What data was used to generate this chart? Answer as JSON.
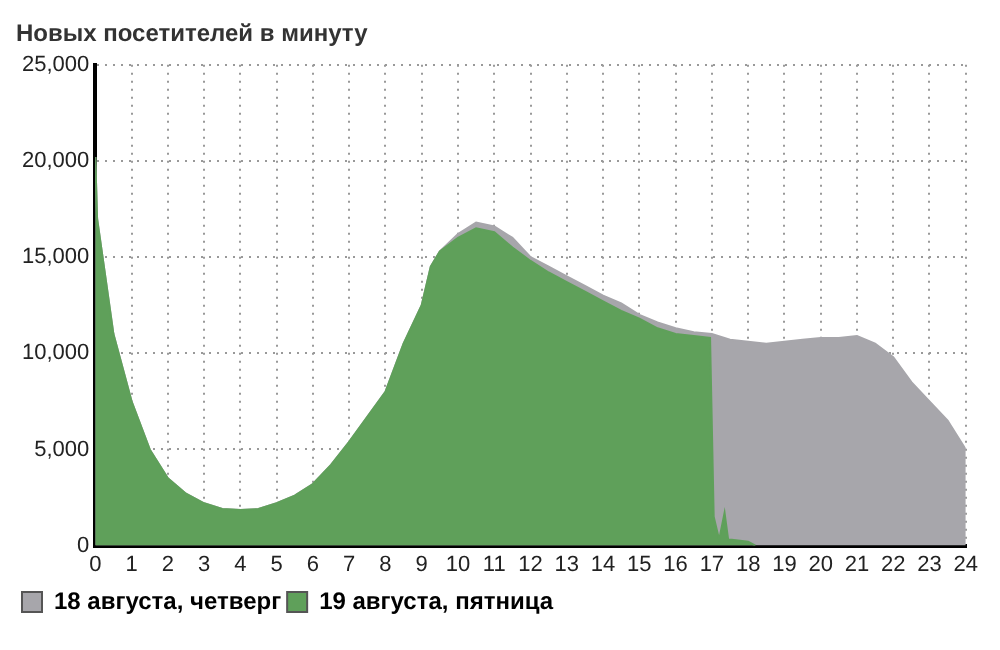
{
  "chart_data": {
    "type": "area",
    "title": "Новых посетителей в минуту",
    "xlim": [
      0,
      24
    ],
    "xticks": [
      0,
      1,
      2,
      3,
      4,
      5,
      6,
      7,
      8,
      9,
      10,
      11,
      12,
      13,
      14,
      15,
      16,
      17,
      18,
      19,
      20,
      21,
      22,
      23,
      24
    ],
    "ylim": [
      0,
      25000
    ],
    "yticks": [
      0,
      {
        "value": 5000,
        "label": "5,000"
      },
      {
        "value": 10000,
        "label": "10,000"
      },
      {
        "value": 15000,
        "label": "15,000"
      },
      {
        "value": 20000,
        "label": "20,000"
      },
      {
        "value": 25000,
        "label": "25,000"
      }
    ],
    "grid": true,
    "legend": "bottom left",
    "series": [
      {
        "name": "18 августа, четверг",
        "color": "#a7a6ab",
        "x": [
          0,
          0.05,
          0.2,
          0.5,
          1,
          1.5,
          2,
          2.5,
          3,
          3.5,
          4,
          4.5,
          5,
          5.5,
          6,
          6.5,
          7,
          7.5,
          8,
          8.5,
          9,
          9.25,
          9.5,
          10,
          10.5,
          11,
          11.5,
          12,
          12.5,
          13,
          13.5,
          14,
          14.5,
          15,
          15.5,
          16,
          16.5,
          17,
          17.5,
          18,
          18.5,
          19,
          19.5,
          20,
          20.5,
          21,
          21.5,
          22,
          22.5,
          23,
          23.5,
          24
        ],
        "values": [
          20200,
          17000,
          15000,
          11000,
          7500,
          5000,
          3500,
          2700,
          2200,
          1900,
          1850,
          1900,
          2200,
          2600,
          3200,
          4200,
          5400,
          6700,
          8000,
          10500,
          12500,
          14500,
          15300,
          16200,
          16800,
          16600,
          16000,
          15000,
          14500,
          14000,
          13500,
          13000,
          12600,
          12000,
          11600,
          11300,
          11100,
          11000,
          10700,
          10600,
          10500,
          10600,
          10700,
          10800,
          10800,
          10900,
          10500,
          9800,
          8500,
          7500,
          6500,
          5000
        ]
      },
      {
        "name": "19 августа, пятница",
        "color": "#5fa05a",
        "x": [
          0,
          0.05,
          0.2,
          0.5,
          1,
          1.5,
          2,
          2.5,
          3,
          3.5,
          4,
          4.5,
          5,
          5.5,
          6,
          6.5,
          7,
          7.5,
          8,
          8.5,
          9,
          9.25,
          9.5,
          10,
          10.5,
          11,
          11.5,
          12,
          12.5,
          13,
          13.5,
          14,
          14.5,
          15,
          15.5,
          16,
          16.5,
          16.95,
          17.05,
          17.2,
          17.35,
          17.45,
          17.55,
          18,
          18.2
        ],
        "values": [
          20200,
          17000,
          15000,
          11000,
          7500,
          5000,
          3500,
          2700,
          2200,
          1900,
          1850,
          1900,
          2200,
          2600,
          3200,
          4200,
          5400,
          6700,
          8000,
          10500,
          12500,
          14500,
          15300,
          16000,
          16500,
          16300,
          15500,
          14800,
          14200,
          13700,
          13200,
          12700,
          12200,
          11800,
          11300,
          11000,
          10900,
          10800,
          1500,
          300,
          1700,
          300,
          300,
          200,
          0
        ]
      }
    ]
  }
}
